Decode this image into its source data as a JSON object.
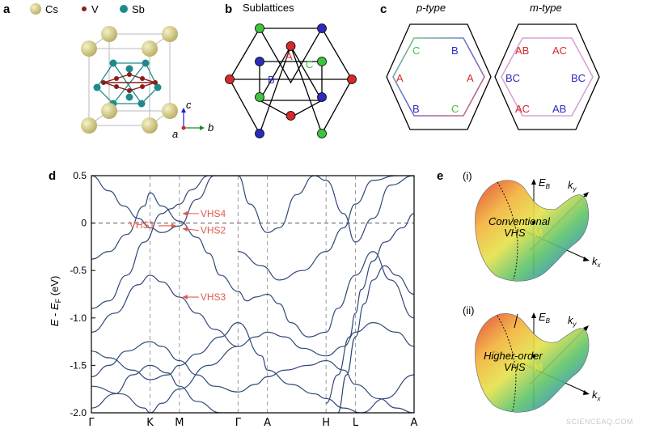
{
  "panel_a": {
    "letter": "a",
    "legend": [
      {
        "label": "Cs",
        "color": "#d8cf8c"
      },
      {
        "label": "V",
        "color": "#8a1e1e"
      },
      {
        "label": "Sb",
        "color": "#1e8a8a"
      }
    ],
    "axes": {
      "c": "c",
      "a": "a",
      "b": "b"
    }
  },
  "panel_b": {
    "letter": "b",
    "title": "Sublattices",
    "labels": {
      "A": "A",
      "B": "B",
      "C": "C"
    },
    "colors": {
      "A": "#d42a2a",
      "B": "#2b2bc0",
      "C": "#3fc43f"
    }
  },
  "panel_c": {
    "letter": "c",
    "p_title": "p-type",
    "m_title": "m-type",
    "p_labels": [
      "C",
      "B",
      "A",
      "A",
      "B",
      "C"
    ],
    "m_labels": [
      "AB",
      "AC",
      "BC",
      "BC",
      "AC",
      "AB"
    ]
  },
  "panel_d": {
    "letter": "d",
    "ylabel": "E - E_F (eV)",
    "annotations": [
      "VHS4",
      "VHS1",
      "VHS2",
      "VHS3"
    ]
  },
  "panel_e": {
    "letter": "e",
    "i_label": "(i)",
    "ii_label": "(ii)",
    "i_text": [
      "Conventional",
      "VHS"
    ],
    "ii_text": [
      "Higher-order",
      "VHS"
    ],
    "m_point": "M",
    "axis_labels": {
      "EB": "E_B",
      "ky": "k_y",
      "kx": "k_x"
    }
  },
  "watermark": "SCIENCEAQ.COM",
  "chart_data": {
    "type": "line",
    "title": "",
    "xlabel": "",
    "ylabel": "E - E_F (eV)",
    "ylim": [
      -2.0,
      0.5
    ],
    "yticks": [
      0.5,
      0,
      -0.5,
      -1.0,
      -1.5,
      -2.0
    ],
    "ytick_labels": [
      "0.5",
      "0",
      "-0.5",
      "-1.0",
      "-1.5",
      "-2.0"
    ],
    "k_points": [
      "Γ",
      "K",
      "M",
      "Γ",
      "A",
      "H",
      "L",
      "A"
    ],
    "k_positions": [
      0,
      1.0,
      1.5,
      2.5,
      3.0,
      4.0,
      4.5,
      5.5
    ],
    "fermi_level": 0,
    "annotations": [
      {
        "text": "VHS4",
        "k": 1.5,
        "E": 0.1
      },
      {
        "text": "VHS1",
        "k": 1.5,
        "E": -0.02
      },
      {
        "text": "VHS2",
        "k": 1.5,
        "E": -0.06
      },
      {
        "text": "VHS3",
        "k": 1.5,
        "E": -0.78
      }
    ],
    "series": [
      {
        "k": [
          0,
          0.3,
          0.55,
          0.8,
          1.0,
          1.2,
          1.5,
          1.8,
          2.1,
          2.5
        ],
        "E": [
          0.5,
          0.34,
          0.18,
          0.05,
          -0.05,
          -0.1,
          -0.03,
          0.25,
          0.5,
          0.5
        ]
      },
      {
        "k": [
          0,
          0.3,
          0.6,
          0.9,
          1.0,
          1.2,
          1.5,
          1.8,
          2.0,
          2.2,
          2.5
        ],
        "E": [
          -0.38,
          -0.3,
          -0.12,
          0.18,
          0.32,
          0.18,
          0.02,
          -0.15,
          -0.32,
          -0.55,
          -0.72
        ]
      },
      {
        "k": [
          0,
          0.3,
          0.6,
          0.9,
          1.2,
          1.35,
          1.5,
          1.7,
          2.0,
          2.3,
          2.5
        ],
        "E": [
          -0.9,
          -0.82,
          -0.55,
          -0.2,
          0.1,
          0.15,
          0.2,
          0.35,
          0.5,
          0.5,
          0.5
        ]
      },
      {
        "k": [
          0,
          0.4,
          0.8,
          1.0,
          1.2,
          1.5,
          1.8,
          2.1,
          2.5
        ],
        "E": [
          -1.15,
          -0.95,
          -0.65,
          -0.55,
          -0.62,
          -0.78,
          -0.95,
          -1.12,
          -1.3
        ]
      },
      {
        "k": [
          0,
          0.3,
          0.6,
          1.0,
          1.2,
          1.5,
          1.8,
          2.1,
          2.5
        ],
        "E": [
          -1.62,
          -1.5,
          -1.35,
          -1.25,
          -1.3,
          -1.45,
          -1.6,
          -1.72,
          -1.78
        ]
      },
      {
        "k": [
          0,
          0.4,
          0.7,
          1.0,
          1.3,
          1.5,
          1.8,
          2.2,
          2.5
        ],
        "E": [
          -1.95,
          -1.8,
          -1.6,
          -1.5,
          -1.58,
          -1.72,
          -1.88,
          -2.0,
          -2.0
        ]
      },
      {
        "k": [
          0,
          0.3,
          0.7,
          1.0,
          1.3,
          1.5,
          1.8,
          2.2,
          2.5
        ],
        "E": [
          -1.35,
          -1.42,
          -1.55,
          -1.65,
          -1.6,
          -1.5,
          -1.38,
          -1.2,
          -1.05
        ]
      },
      {
        "k": [
          0,
          0.5,
          0.9,
          1.0,
          1.2,
          1.5,
          2.0,
          2.5
        ],
        "E": [
          -1.72,
          -1.8,
          -1.95,
          -2.0,
          -1.9,
          -1.75,
          -1.5,
          -1.3
        ]
      },
      {
        "k": [
          2.5,
          2.65,
          2.8,
          3.0,
          3.2,
          3.4,
          3.7,
          4.0,
          4.2,
          4.5,
          4.8,
          5.1,
          5.5
        ],
        "E": [
          -0.72,
          -0.82,
          -0.78,
          -0.75,
          -0.85,
          -1.05,
          -1.2,
          -1.15,
          -0.9,
          -0.55,
          -0.3,
          -0.6,
          -1.0
        ]
      },
      {
        "k": [
          2.5,
          2.7,
          3.0,
          3.2,
          3.5,
          3.8,
          4.0,
          4.3,
          4.5,
          4.8,
          5.1,
          5.5
        ],
        "E": [
          0.5,
          0.2,
          -0.1,
          -0.05,
          0.3,
          0.5,
          0.45,
          0.1,
          -0.2,
          0.05,
          0.4,
          0.5
        ]
      },
      {
        "k": [
          2.5,
          2.8,
          3.0,
          3.3,
          3.6,
          4.0,
          4.3,
          4.5,
          4.8,
          5.2,
          5.5
        ],
        "E": [
          -1.3,
          -1.2,
          -1.15,
          -1.2,
          -1.32,
          -1.4,
          -1.3,
          -1.15,
          -1.05,
          -1.15,
          -1.3
        ]
      },
      {
        "k": [
          2.5,
          2.8,
          3.0,
          3.3,
          3.7,
          4.0,
          4.3,
          4.5,
          4.9,
          5.2,
          5.5
        ],
        "E": [
          -1.78,
          -1.7,
          -1.62,
          -1.55,
          -1.5,
          -1.45,
          -1.55,
          -1.7,
          -1.85,
          -1.95,
          -2.0
        ]
      },
      {
        "k": [
          2.5,
          2.9,
          3.0,
          3.4,
          3.8,
          4.0,
          4.3,
          4.6,
          5.0,
          5.5
        ],
        "E": [
          -1.05,
          -1.4,
          -1.55,
          -1.7,
          -1.8,
          -1.85,
          -1.95,
          -2.0,
          -1.85,
          -1.6
        ]
      },
      {
        "k": [
          2.5,
          2.9,
          3.2,
          3.6,
          4.0,
          4.3,
          4.5,
          4.8,
          5.2,
          5.5
        ],
        "E": [
          -0.3,
          -0.45,
          -0.6,
          -0.5,
          -0.3,
          -0.05,
          0.2,
          0.45,
          0.5,
          0.5
        ]
      },
      {
        "k": [
          4.0,
          4.2,
          4.4,
          4.5,
          4.6,
          4.8,
          5.0,
          5.3,
          5.5
        ],
        "E": [
          -1.9,
          -1.6,
          -1.2,
          -0.95,
          -0.7,
          -0.4,
          -0.2,
          -0.05,
          0.1
        ]
      },
      {
        "k": [
          4.2,
          4.35,
          4.5,
          4.65,
          4.8,
          5.0,
          5.2,
          5.5
        ],
        "E": [
          -2.0,
          -1.6,
          -1.2,
          -0.85,
          -0.6,
          -0.45,
          -0.55,
          -0.75
        ]
      }
    ]
  }
}
